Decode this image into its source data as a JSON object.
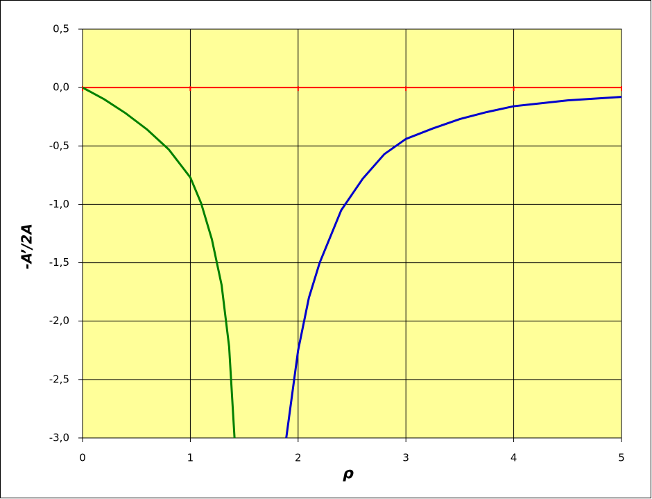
{
  "chart_data": {
    "type": "line",
    "x_label": "ρ",
    "y_label": "-A’/2A",
    "xlim": [
      0,
      5
    ],
    "ylim": [
      -3,
      0.5
    ],
    "xticks": [
      0,
      1,
      2,
      3,
      4,
      5
    ],
    "yticks": [
      {
        "value": -3,
        "label": "-3,0"
      },
      {
        "value": -2.5,
        "label": "-2,5"
      },
      {
        "value": -2,
        "label": "-2,0"
      },
      {
        "value": -1.5,
        "label": "-1,5"
      },
      {
        "value": -1,
        "label": "-1,0"
      },
      {
        "value": -0.5,
        "label": "-0,5"
      },
      {
        "value": 0,
        "label": "0,0"
      },
      {
        "value": 0.5,
        "label": "0,5"
      }
    ],
    "grid": true,
    "plot_background": "#ffff99",
    "series": [
      {
        "color": "#ff0000",
        "x": [
          0,
          1,
          2,
          3,
          4,
          5
        ],
        "values": [
          0,
          0,
          0,
          0,
          0,
          0
        ]
      },
      {
        "color": "#008000",
        "x": [
          0,
          0.2,
          0.4,
          0.6,
          0.8,
          1.0,
          1.1,
          1.2,
          1.29,
          1.36,
          1.41
        ],
        "values": [
          0,
          -0.1,
          -0.22,
          -0.36,
          -0.53,
          -0.77,
          -0.99,
          -1.3,
          -1.69,
          -2.22,
          -3.0
        ]
      },
      {
        "color": "#0000cc",
        "x": [
          1.89,
          2.0,
          2.1,
          2.2,
          2.4,
          2.6,
          2.8,
          3.0,
          3.25,
          3.5,
          3.75,
          4.0,
          4.5,
          5.0
        ],
        "values": [
          -3.0,
          -2.25,
          -1.8,
          -1.5,
          -1.05,
          -0.78,
          -0.57,
          -0.44,
          -0.35,
          -0.27,
          -0.21,
          -0.16,
          -0.11,
          -0.08
        ]
      }
    ]
  }
}
